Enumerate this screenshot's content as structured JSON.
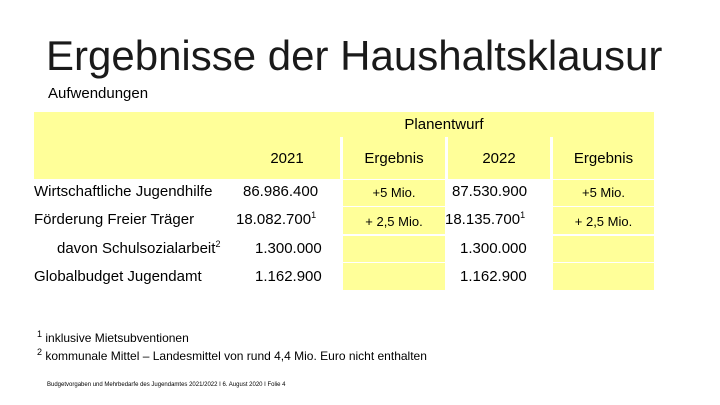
{
  "slide": {
    "title": "Ergebnisse der Haushaltsklausur",
    "subtitle": "Aufwendungen"
  },
  "table": {
    "header": "Planentwurf",
    "columns": [
      "2021",
      "Ergebnis",
      "2022",
      "Ergebnis"
    ],
    "rows": [
      {
        "label": "Wirtschaftliche Jugendhilfe",
        "v2021": "86.986.400",
        "sup2021": "",
        "erg2021": "+5 Mio.",
        "v2022": "87.530.900",
        "sup2022": "",
        "erg2022": "+5 Mio."
      },
      {
        "label": "Förderung Freier Träger",
        "v2021": "18.082.700",
        "sup2021": "1",
        "erg2021": "+ 2,5 Mio.",
        "v2022": "18.135.700",
        "sup2022": "1",
        "erg2022": "+ 2,5 Mio."
      },
      {
        "label": "davon Schulsozialarbeit",
        "label_sup": "2",
        "v2021": "1.300.000",
        "v2022": "1.300.000"
      },
      {
        "label": "Globalbudget Jugendamt",
        "v2021": "1.162.900",
        "v2022": "1.162.900"
      }
    ]
  },
  "footnotes": [
    {
      "mark": "1",
      "text": " inklusive Mietsubventionen"
    },
    {
      "mark": "2",
      "text": " kommunale Mittel – Landesmittel von rund 4,4 Mio. Euro nicht enthalten"
    }
  ],
  "footer": "Budgetvorgaben und Mehrbedarfe des Jugendamtes 2021/2022 I 6. August 2020 I Folie 4",
  "colors": {
    "cell_fill": "#ffff99"
  }
}
